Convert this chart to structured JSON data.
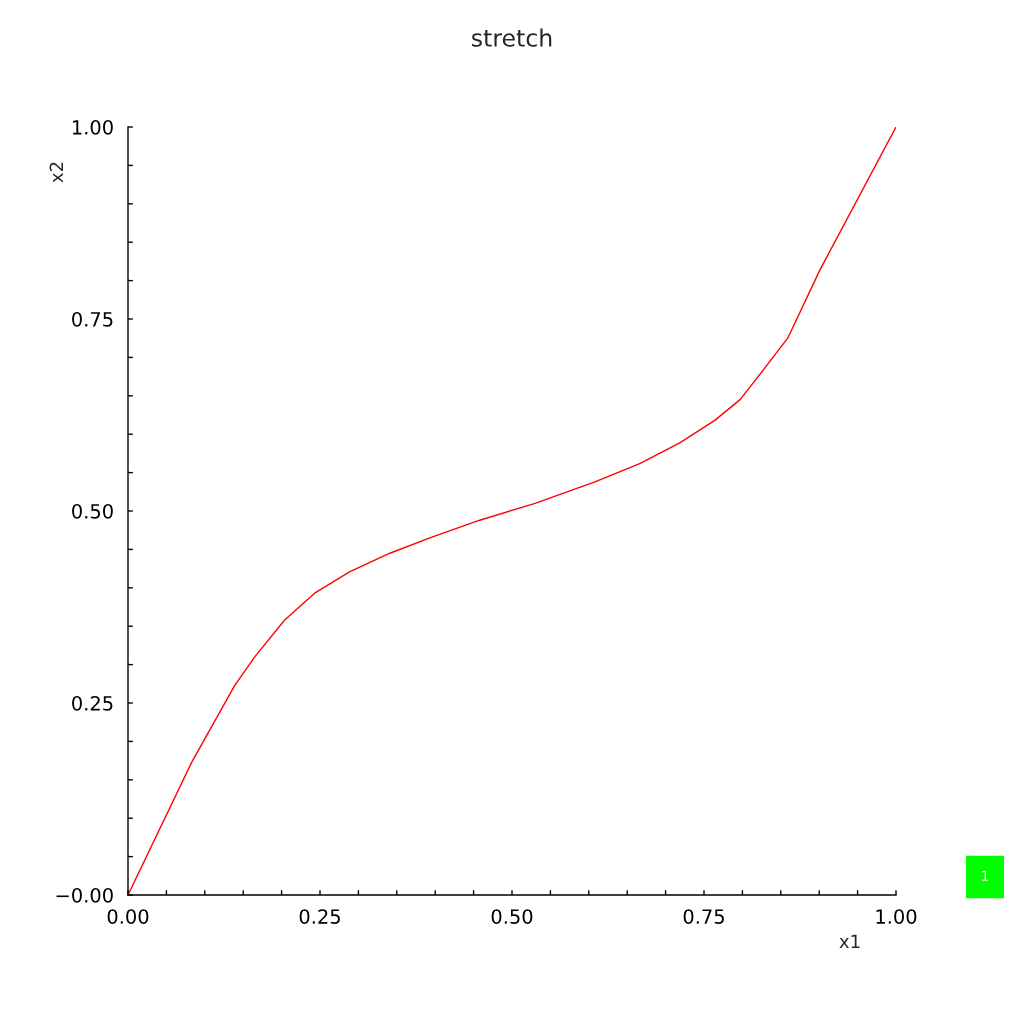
{
  "chart_data": {
    "type": "line",
    "title": "stretch",
    "xlabel": "x1",
    "ylabel": "x2",
    "x": [
      0,
      0.083,
      0.139,
      0.165,
      0.204,
      0.243,
      0.289,
      0.341,
      0.393,
      0.458,
      0.53,
      0.608,
      0.667,
      0.719,
      0.764,
      0.797,
      0.829,
      0.859,
      0.901,
      1
    ],
    "series": [
      {
        "color": "#ff0000",
        "values": [
          0,
          0.173,
          0.273,
          0.31,
          0.358,
          0.393,
          0.421,
          0.445,
          0.465,
          0.488,
          0.51,
          0.538,
          0.562,
          0.589,
          0.618,
          0.645,
          0.686,
          0.725,
          0.814,
          1
        ]
      }
    ],
    "xlim": [
      0,
      1
    ],
    "ylim": [
      0,
      1
    ],
    "xticks": [
      {
        "value": 0,
        "label": "0.00"
      },
      {
        "value": 0.05,
        "label": null
      },
      {
        "value": 0.1,
        "label": null
      },
      {
        "value": 0.15,
        "label": null
      },
      {
        "value": 0.2,
        "label": null
      },
      {
        "value": 0.25,
        "label": "0.25"
      },
      {
        "value": 0.3,
        "label": null
      },
      {
        "value": 0.35,
        "label": null
      },
      {
        "value": 0.4,
        "label": null
      },
      {
        "value": 0.45,
        "label": null
      },
      {
        "value": 0.5,
        "label": "0.50"
      },
      {
        "value": 0.55,
        "label": null
      },
      {
        "value": 0.6,
        "label": null
      },
      {
        "value": 0.65,
        "label": null
      },
      {
        "value": 0.7,
        "label": null
      },
      {
        "value": 0.75,
        "label": "0.75"
      },
      {
        "value": 0.8,
        "label": null
      },
      {
        "value": 0.85,
        "label": null
      },
      {
        "value": 0.9,
        "label": null
      },
      {
        "value": 0.95,
        "label": null
      },
      {
        "value": 1,
        "label": "1.00"
      }
    ],
    "yticks": [
      {
        "value": 0,
        "label": "−0.00"
      },
      {
        "value": 0.05,
        "label": null
      },
      {
        "value": 0.1,
        "label": null
      },
      {
        "value": 0.15,
        "label": null
      },
      {
        "value": 0.2,
        "label": null
      },
      {
        "value": 0.25,
        "label": "0.25"
      },
      {
        "value": 0.3,
        "label": null
      },
      {
        "value": 0.35,
        "label": null
      },
      {
        "value": 0.4,
        "label": null
      },
      {
        "value": 0.45,
        "label": null
      },
      {
        "value": 0.5,
        "label": "0.50"
      },
      {
        "value": 0.55,
        "label": null
      },
      {
        "value": 0.6,
        "label": null
      },
      {
        "value": 0.65,
        "label": null
      },
      {
        "value": 0.7,
        "label": null
      },
      {
        "value": 0.75,
        "label": "0.75"
      },
      {
        "value": 0.8,
        "label": null
      },
      {
        "value": 0.85,
        "label": null
      },
      {
        "value": 0.9,
        "label": null
      },
      {
        "value": 0.95,
        "label": null
      },
      {
        "value": 1,
        "label": "1.00"
      }
    ],
    "annotations": [
      "1"
    ]
  }
}
